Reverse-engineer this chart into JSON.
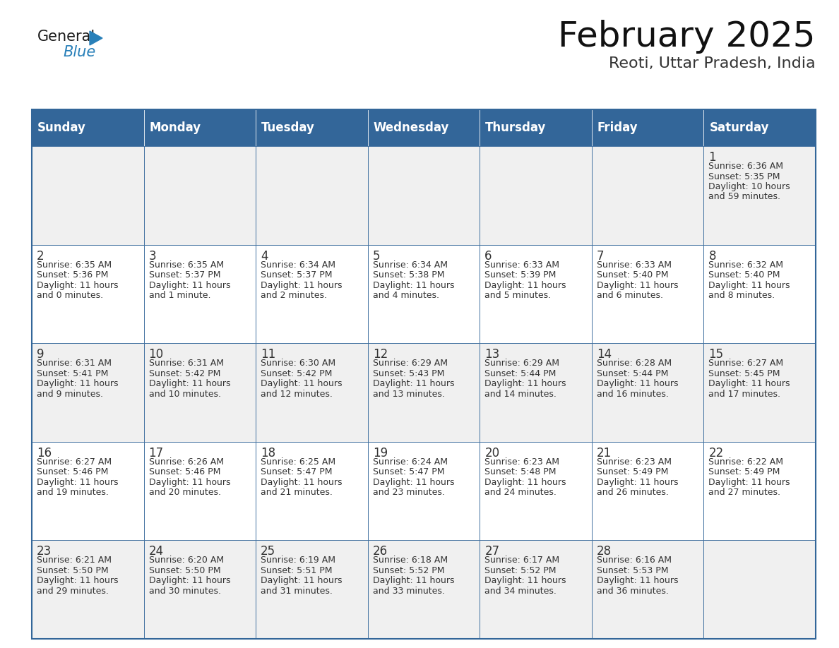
{
  "title": "February 2025",
  "subtitle": "Reoti, Uttar Pradesh, India",
  "days_of_week": [
    "Sunday",
    "Monday",
    "Tuesday",
    "Wednesday",
    "Thursday",
    "Friday",
    "Saturday"
  ],
  "header_bg": "#336699",
  "header_text": "#FFFFFF",
  "cell_bg_odd": "#FFFFFF",
  "cell_bg_even": "#F0F0F0",
  "border_color": "#336699",
  "text_color": "#333333",
  "calendar": [
    [
      null,
      null,
      null,
      null,
      null,
      null,
      1
    ],
    [
      2,
      3,
      4,
      5,
      6,
      7,
      8
    ],
    [
      9,
      10,
      11,
      12,
      13,
      14,
      15
    ],
    [
      16,
      17,
      18,
      19,
      20,
      21,
      22
    ],
    [
      23,
      24,
      25,
      26,
      27,
      28,
      null
    ]
  ],
  "sunrise_data": {
    "1": "6:36 AM",
    "2": "6:35 AM",
    "3": "6:35 AM",
    "4": "6:34 AM",
    "5": "6:34 AM",
    "6": "6:33 AM",
    "7": "6:33 AM",
    "8": "6:32 AM",
    "9": "6:31 AM",
    "10": "6:31 AM",
    "11": "6:30 AM",
    "12": "6:29 AM",
    "13": "6:29 AM",
    "14": "6:28 AM",
    "15": "6:27 AM",
    "16": "6:27 AM",
    "17": "6:26 AM",
    "18": "6:25 AM",
    "19": "6:24 AM",
    "20": "6:23 AM",
    "21": "6:23 AM",
    "22": "6:22 AM",
    "23": "6:21 AM",
    "24": "6:20 AM",
    "25": "6:19 AM",
    "26": "6:18 AM",
    "27": "6:17 AM",
    "28": "6:16 AM"
  },
  "sunset_data": {
    "1": "5:35 PM",
    "2": "5:36 PM",
    "3": "5:37 PM",
    "4": "5:37 PM",
    "5": "5:38 PM",
    "6": "5:39 PM",
    "7": "5:40 PM",
    "8": "5:40 PM",
    "9": "5:41 PM",
    "10": "5:42 PM",
    "11": "5:42 PM",
    "12": "5:43 PM",
    "13": "5:44 PM",
    "14": "5:44 PM",
    "15": "5:45 PM",
    "16": "5:46 PM",
    "17": "5:46 PM",
    "18": "5:47 PM",
    "19": "5:47 PM",
    "20": "5:48 PM",
    "21": "5:49 PM",
    "22": "5:49 PM",
    "23": "5:50 PM",
    "24": "5:50 PM",
    "25": "5:51 PM",
    "26": "5:52 PM",
    "27": "5:52 PM",
    "28": "5:53 PM"
  },
  "daylight_data": {
    "1": [
      "10 hours",
      "and 59 minutes."
    ],
    "2": [
      "11 hours",
      "and 0 minutes."
    ],
    "3": [
      "11 hours",
      "and 1 minute."
    ],
    "4": [
      "11 hours",
      "and 2 minutes."
    ],
    "5": [
      "11 hours",
      "and 4 minutes."
    ],
    "6": [
      "11 hours",
      "and 5 minutes."
    ],
    "7": [
      "11 hours",
      "and 6 minutes."
    ],
    "8": [
      "11 hours",
      "and 8 minutes."
    ],
    "9": [
      "11 hours",
      "and 9 minutes."
    ],
    "10": [
      "11 hours",
      "and 10 minutes."
    ],
    "11": [
      "11 hours",
      "and 12 minutes."
    ],
    "12": [
      "11 hours",
      "and 13 minutes."
    ],
    "13": [
      "11 hours",
      "and 14 minutes."
    ],
    "14": [
      "11 hours",
      "and 16 minutes."
    ],
    "15": [
      "11 hours",
      "and 17 minutes."
    ],
    "16": [
      "11 hours",
      "and 19 minutes."
    ],
    "17": [
      "11 hours",
      "and 20 minutes."
    ],
    "18": [
      "11 hours",
      "and 21 minutes."
    ],
    "19": [
      "11 hours",
      "and 23 minutes."
    ],
    "20": [
      "11 hours",
      "and 24 minutes."
    ],
    "21": [
      "11 hours",
      "and 26 minutes."
    ],
    "22": [
      "11 hours",
      "and 27 minutes."
    ],
    "23": [
      "11 hours",
      "and 29 minutes."
    ],
    "24": [
      "11 hours",
      "and 30 minutes."
    ],
    "25": [
      "11 hours",
      "and 31 minutes."
    ],
    "26": [
      "11 hours",
      "and 33 minutes."
    ],
    "27": [
      "11 hours",
      "and 34 minutes."
    ],
    "28": [
      "11 hours",
      "and 36 minutes."
    ]
  },
  "logo_color_general": "#1a1a1a",
  "logo_color_blue": "#2980B9",
  "logo_triangle_color": "#2980B9",
  "title_fontsize": 36,
  "subtitle_fontsize": 16,
  "header_fontsize": 12,
  "day_num_fontsize": 12,
  "cell_text_fontsize": 9
}
